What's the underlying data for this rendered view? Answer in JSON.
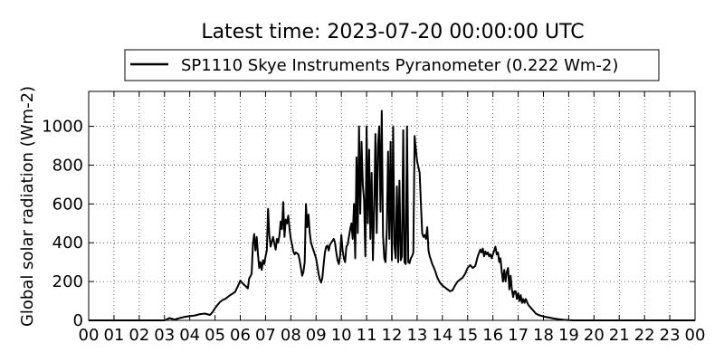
{
  "chart_data": {
    "type": "line",
    "title": "Latest time: 2023-07-20 00:00:00 UTC",
    "ylabel": "Global solar radiation (Wm-2)",
    "xlabel": "",
    "xlim": [
      0,
      24
    ],
    "ylim": [
      0,
      1180
    ],
    "grid": true,
    "grid_style": "dotted",
    "legend_position": "top",
    "x_ticks": [
      0,
      1,
      2,
      3,
      4,
      5,
      6,
      7,
      8,
      9,
      10,
      11,
      12,
      13,
      14,
      15,
      16,
      17,
      18,
      19,
      20,
      21,
      22,
      23,
      24
    ],
    "x_tick_labels": [
      "00",
      "01",
      "02",
      "03",
      "04",
      "05",
      "06",
      "07",
      "08",
      "09",
      "10",
      "11",
      "12",
      "13",
      "14",
      "15",
      "16",
      "17",
      "18",
      "19",
      "20",
      "21",
      "22",
      "23",
      "00"
    ],
    "y_ticks": [
      0,
      200,
      400,
      600,
      800,
      1000
    ],
    "y_tick_labels": [
      "0",
      "200",
      "400",
      "600",
      "800",
      "1000"
    ],
    "series": [
      {
        "name": "SP1110 Skye Instruments Pyranometer (0.222 Wm-2)",
        "color": "#000000",
        "points": [
          [
            0,
            0
          ],
          [
            1,
            0
          ],
          [
            2,
            0
          ],
          [
            3,
            0
          ],
          [
            3.1,
            5
          ],
          [
            3.2,
            12
          ],
          [
            3.3,
            8
          ],
          [
            3.4,
            4
          ],
          [
            3.6,
            12
          ],
          [
            3.8,
            18
          ],
          [
            4.0,
            22
          ],
          [
            4.2,
            25
          ],
          [
            4.4,
            32
          ],
          [
            4.6,
            35
          ],
          [
            4.8,
            28
          ],
          [
            4.9,
            42
          ],
          [
            5.0,
            62
          ],
          [
            5.1,
            80
          ],
          [
            5.2,
            95
          ],
          [
            5.3,
            105
          ],
          [
            5.4,
            110
          ],
          [
            5.5,
            120
          ],
          [
            5.6,
            130
          ],
          [
            5.7,
            138
          ],
          [
            5.8,
            148
          ],
          [
            5.9,
            175
          ],
          [
            6.0,
            205
          ],
          [
            6.1,
            190
          ],
          [
            6.2,
            178
          ],
          [
            6.3,
            165
          ],
          [
            6.35,
            215
          ],
          [
            6.45,
            240
          ],
          [
            6.5,
            390
          ],
          [
            6.55,
            445
          ],
          [
            6.6,
            360
          ],
          [
            6.65,
            430
          ],
          [
            6.7,
            340
          ],
          [
            6.75,
            270
          ],
          [
            6.8,
            300
          ],
          [
            6.85,
            260
          ],
          [
            6.9,
            310
          ],
          [
            6.95,
            290
          ],
          [
            7.0,
            330
          ],
          [
            7.05,
            360
          ],
          [
            7.1,
            575
          ],
          [
            7.15,
            440
          ],
          [
            7.2,
            380
          ],
          [
            7.25,
            405
          ],
          [
            7.3,
            430
          ],
          [
            7.35,
            395
          ],
          [
            7.4,
            365
          ],
          [
            7.45,
            420
          ],
          [
            7.5,
            400
          ],
          [
            7.55,
            440
          ],
          [
            7.6,
            510
          ],
          [
            7.65,
            470
          ],
          [
            7.7,
            610
          ],
          [
            7.75,
            430
          ],
          [
            7.8,
            520
          ],
          [
            7.85,
            500
          ],
          [
            7.9,
            540
          ],
          [
            7.95,
            470
          ],
          [
            8.0,
            420
          ],
          [
            8.05,
            390
          ],
          [
            8.1,
            355
          ],
          [
            8.15,
            340
          ],
          [
            8.2,
            350
          ],
          [
            8.25,
            345
          ],
          [
            8.3,
            340
          ],
          [
            8.35,
            310
          ],
          [
            8.4,
            270
          ],
          [
            8.45,
            230
          ],
          [
            8.5,
            250
          ],
          [
            8.55,
            300
          ],
          [
            8.6,
            600
          ],
          [
            8.65,
            480
          ],
          [
            8.7,
            545
          ],
          [
            8.75,
            450
          ],
          [
            8.8,
            400
          ],
          [
            8.85,
            380
          ],
          [
            8.9,
            360
          ],
          [
            8.95,
            340
          ],
          [
            9.0,
            320
          ],
          [
            9.05,
            280
          ],
          [
            9.1,
            240
          ],
          [
            9.15,
            210
          ],
          [
            9.2,
            195
          ],
          [
            9.25,
            220
          ],
          [
            9.3,
            290
          ],
          [
            9.35,
            350
          ],
          [
            9.4,
            380
          ],
          [
            9.45,
            385
          ],
          [
            9.5,
            360
          ],
          [
            9.55,
            390
          ],
          [
            9.6,
            400
          ],
          [
            9.65,
            410
          ],
          [
            9.7,
            420
          ],
          [
            9.75,
            400
          ],
          [
            9.8,
            350
          ],
          [
            9.85,
            310
          ],
          [
            9.9,
            290
          ],
          [
            9.95,
            330
          ],
          [
            10.0,
            440
          ],
          [
            10.05,
            360
          ],
          [
            10.1,
            320
          ],
          [
            10.15,
            300
          ],
          [
            10.2,
            380
          ],
          [
            10.25,
            390
          ],
          [
            10.3,
            430
          ],
          [
            10.35,
            470
          ],
          [
            10.4,
            500
          ],
          [
            10.45,
            420
          ],
          [
            10.5,
            600
          ],
          [
            10.55,
            320
          ],
          [
            10.6,
            840
          ],
          [
            10.65,
            450
          ],
          [
            10.7,
            1000
          ],
          [
            10.75,
            550
          ],
          [
            10.8,
            920
          ],
          [
            10.85,
            700
          ],
          [
            10.9,
            620
          ],
          [
            10.95,
            330
          ],
          [
            11.0,
            1000
          ],
          [
            11.05,
            500
          ],
          [
            11.1,
            880
          ],
          [
            11.15,
            420
          ],
          [
            11.2,
            760
          ],
          [
            11.25,
            310
          ],
          [
            11.3,
            580
          ],
          [
            11.35,
            960
          ],
          [
            11.4,
            450
          ],
          [
            11.45,
            900
          ],
          [
            11.5,
            1000
          ],
          [
            11.55,
            560
          ],
          [
            11.6,
            1080
          ],
          [
            11.65,
            440
          ],
          [
            11.7,
            320
          ],
          [
            11.75,
            300
          ],
          [
            11.8,
            470
          ],
          [
            11.85,
            870
          ],
          [
            11.9,
            420
          ],
          [
            11.95,
            920
          ],
          [
            12.0,
            310
          ],
          [
            12.05,
            1000
          ],
          [
            12.1,
            390
          ],
          [
            12.15,
            320
          ],
          [
            12.2,
            690
          ],
          [
            12.25,
            300
          ],
          [
            12.3,
            720
          ],
          [
            12.35,
            310
          ],
          [
            12.4,
            330
          ],
          [
            12.45,
            980
          ],
          [
            12.5,
            300
          ],
          [
            12.55,
            290
          ],
          [
            12.6,
            1000
          ],
          [
            12.65,
            300
          ],
          [
            12.7,
            295
          ],
          [
            12.75,
            320
          ],
          [
            12.8,
            330
          ],
          [
            12.85,
            350
          ],
          [
            12.9,
            950
          ],
          [
            12.95,
            880
          ],
          [
            13.0,
            820
          ],
          [
            13.05,
            790
          ],
          [
            13.1,
            760
          ],
          [
            13.15,
            600
          ],
          [
            13.2,
            450
          ],
          [
            13.25,
            430
          ],
          [
            13.3,
            440
          ],
          [
            13.35,
            420
          ],
          [
            13.4,
            480
          ],
          [
            13.45,
            360
          ],
          [
            13.5,
            330
          ],
          [
            13.6,
            290
          ],
          [
            13.7,
            260
          ],
          [
            13.8,
            220
          ],
          [
            13.9,
            195
          ],
          [
            14.0,
            180
          ],
          [
            14.1,
            170
          ],
          [
            14.2,
            160
          ],
          [
            14.3,
            150
          ],
          [
            14.4,
            155
          ],
          [
            14.5,
            180
          ],
          [
            14.6,
            200
          ],
          [
            14.7,
            210
          ],
          [
            14.8,
            220
          ],
          [
            14.9,
            240
          ],
          [
            15.0,
            270
          ],
          [
            15.1,
            285
          ],
          [
            15.2,
            270
          ],
          [
            15.3,
            280
          ],
          [
            15.4,
            330
          ],
          [
            15.5,
            365
          ],
          [
            15.55,
            350
          ],
          [
            15.6,
            370
          ],
          [
            15.65,
            330
          ],
          [
            15.7,
            355
          ],
          [
            15.75,
            340
          ],
          [
            15.8,
            350
          ],
          [
            15.85,
            330
          ],
          [
            15.9,
            340
          ],
          [
            15.95,
            320
          ],
          [
            16.0,
            340
          ],
          [
            16.05,
            360
          ],
          [
            16.1,
            380
          ],
          [
            16.15,
            340
          ],
          [
            16.2,
            350
          ],
          [
            16.25,
            300
          ],
          [
            16.3,
            320
          ],
          [
            16.35,
            250
          ],
          [
            16.4,
            200
          ],
          [
            16.45,
            260
          ],
          [
            16.5,
            200
          ],
          [
            16.55,
            250
          ],
          [
            16.6,
            270
          ],
          [
            16.65,
            160
          ],
          [
            16.7,
            230
          ],
          [
            16.75,
            160
          ],
          [
            16.8,
            120
          ],
          [
            16.85,
            150
          ],
          [
            16.9,
            150
          ],
          [
            16.95,
            110
          ],
          [
            17.0,
            140
          ],
          [
            17.05,
            100
          ],
          [
            17.1,
            130
          ],
          [
            17.15,
            90
          ],
          [
            17.2,
            110
          ],
          [
            17.25,
            90
          ],
          [
            17.3,
            110
          ],
          [
            17.4,
            80
          ],
          [
            17.5,
            65
          ],
          [
            17.6,
            50
          ],
          [
            17.7,
            35
          ],
          [
            17.8,
            28
          ],
          [
            18.0,
            20
          ],
          [
            18.2,
            15
          ],
          [
            18.4,
            10
          ],
          [
            18.6,
            6
          ],
          [
            18.8,
            3
          ],
          [
            19.0,
            1
          ],
          [
            19.2,
            0
          ],
          [
            20,
            0
          ],
          [
            21,
            0
          ],
          [
            22,
            0
          ],
          [
            23,
            0
          ],
          [
            24,
            0
          ]
        ]
      }
    ]
  }
}
